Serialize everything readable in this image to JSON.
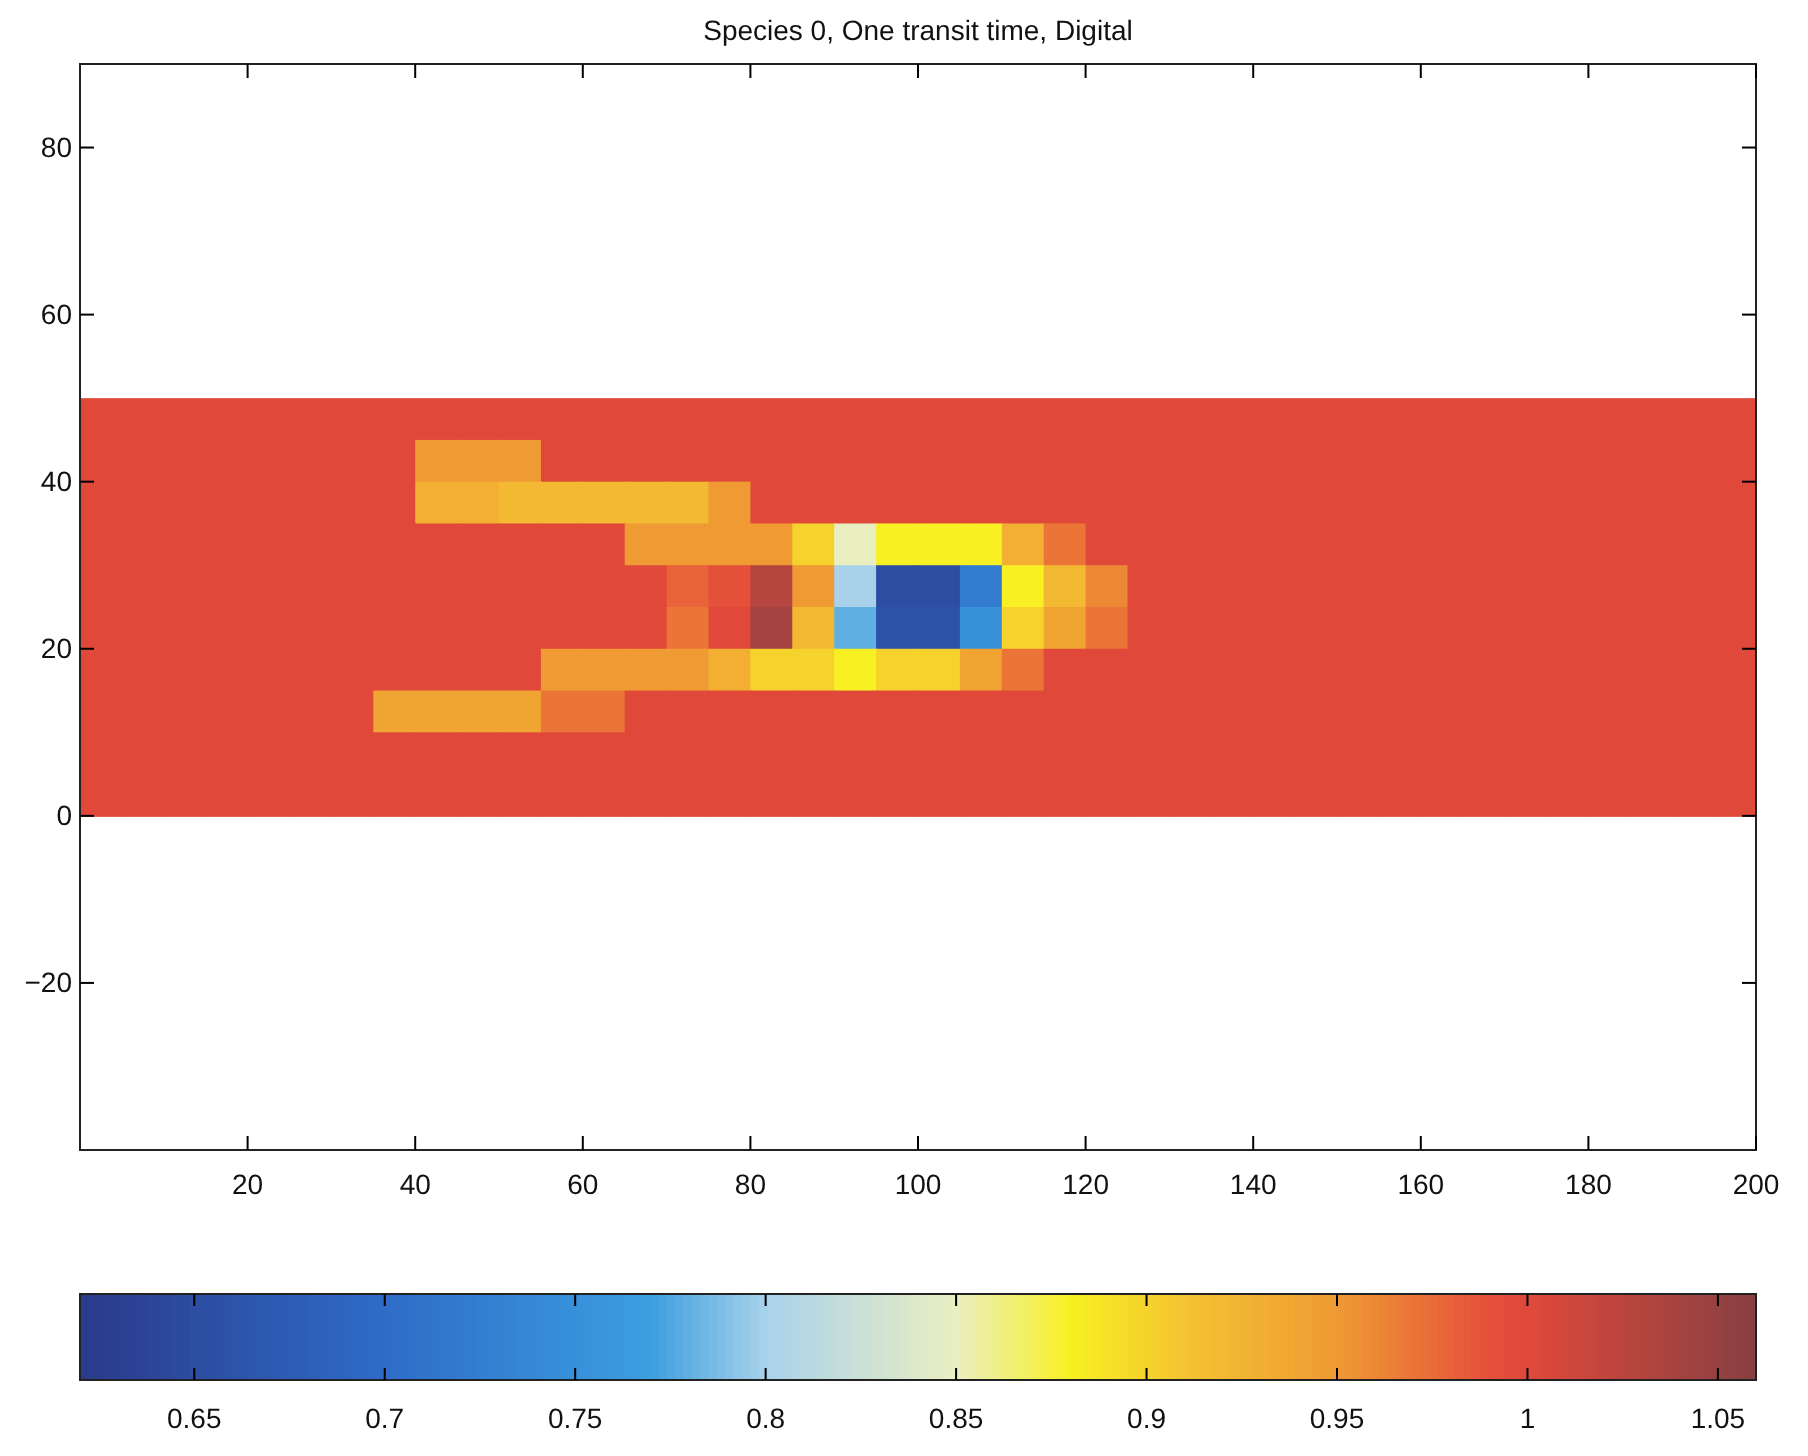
{
  "chart_data": {
    "type": "heatmap",
    "title": "Species 0, One transit time, Digital",
    "x": [
      2.5,
      7.5,
      12.5,
      17.5,
      22.5,
      27.5,
      32.5,
      37.5,
      42.5,
      47.5,
      52.5,
      57.5,
      62.5,
      67.5,
      72.5,
      77.5,
      82.5,
      87.5,
      92.5,
      97.5,
      102.5,
      107.5,
      112.5,
      117.5,
      122.5,
      127.5,
      132.5,
      137.5,
      142.5,
      147.5,
      152.5,
      157.5,
      162.5,
      167.5,
      172.5,
      177.5,
      182.5,
      187.5,
      192.5,
      197.5
    ],
    "y": [
      47.5,
      42.5,
      37.5,
      32.5,
      27.5,
      22.5,
      17.5,
      12.5,
      7.5,
      2.5
    ],
    "cells": [
      [
        1,
        1,
        1,
        1,
        1,
        1,
        1,
        1,
        1,
        1,
        1,
        1,
        1,
        1,
        1,
        1,
        1,
        1,
        1,
        1,
        1,
        1,
        1,
        1,
        1,
        1,
        1,
        1,
        1,
        1,
        1,
        1,
        1,
        1,
        1,
        1,
        1,
        1,
        1,
        1
      ],
      [
        1,
        1,
        1,
        1,
        1,
        1,
        1,
        1,
        0.95,
        0.95,
        0.95,
        1,
        1,
        1,
        1,
        1,
        1,
        1,
        1,
        1,
        1,
        1,
        1,
        1,
        1,
        1,
        1,
        1,
        1,
        1,
        1,
        1,
        1,
        1,
        1,
        1,
        1,
        1,
        1,
        1
      ],
      [
        1,
        1,
        1,
        1,
        1,
        1,
        1,
        1,
        0.93,
        0.93,
        0.92,
        0.92,
        0.92,
        0.92,
        0.92,
        0.95,
        1,
        1,
        1,
        1,
        1,
        1,
        1,
        1,
        1,
        1,
        1,
        1,
        1,
        1,
        1,
        1,
        1,
        1,
        1,
        1,
        1,
        1,
        1,
        1
      ],
      [
        1,
        1,
        1,
        1,
        1,
        1,
        1,
        1,
        1,
        1,
        1,
        1,
        1,
        0.95,
        0.95,
        0.95,
        0.95,
        0.9,
        0.85,
        0.88,
        0.88,
        0.88,
        0.93,
        0.97,
        1,
        1,
        1,
        1,
        1,
        1,
        1,
        1,
        1,
        1,
        1,
        1,
        1,
        1,
        1,
        1
      ],
      [
        1,
        1,
        1,
        1,
        1,
        1,
        1,
        1,
        1,
        1,
        1,
        1,
        1,
        1,
        0.98,
        0.99,
        1.03,
        0.95,
        0.8,
        0.65,
        0.65,
        0.72,
        0.88,
        0.92,
        0.96,
        1,
        1,
        1,
        1,
        1,
        1,
        1,
        1,
        1,
        1,
        1,
        1,
        1,
        1,
        1
      ],
      [
        1,
        1,
        1,
        1,
        1,
        1,
        1,
        1,
        1,
        1,
        1,
        1,
        1,
        1,
        0.97,
        1,
        1.04,
        0.92,
        0.78,
        0.66,
        0.66,
        0.75,
        0.9,
        0.94,
        0.97,
        1,
        1,
        1,
        1,
        1,
        1,
        1,
        1,
        1,
        1,
        1,
        1,
        1,
        1,
        1
      ],
      [
        1,
        1,
        1,
        1,
        1,
        1,
        1,
        1,
        1,
        1,
        1,
        0.95,
        0.95,
        0.95,
        0.95,
        0.93,
        0.9,
        0.9,
        0.88,
        0.9,
        0.9,
        0.94,
        0.97,
        1,
        1,
        1,
        1,
        1,
        1,
        1,
        1,
        1,
        1,
        1,
        1,
        1,
        1,
        1,
        1,
        1
      ],
      [
        1,
        1,
        1,
        1,
        1,
        1,
        1,
        0.94,
        0.94,
        0.94,
        0.94,
        0.97,
        0.97,
        1,
        1,
        1,
        1,
        1,
        1,
        1,
        1,
        1,
        1,
        1,
        1,
        1,
        1,
        1,
        1,
        1,
        1,
        1,
        1,
        1,
        1,
        1,
        1,
        1,
        1,
        1
      ],
      [
        1,
        1,
        1,
        1,
        1,
        1,
        1,
        1,
        1,
        1,
        1,
        1,
        1,
        1,
        1,
        1,
        1,
        1,
        1,
        1,
        1,
        1,
        1,
        1,
        1,
        1,
        1,
        1,
        1,
        1,
        1,
        1,
        1,
        1,
        1,
        1,
        1,
        1,
        1,
        1
      ],
      [
        1,
        1,
        1,
        1,
        1,
        1,
        1,
        1,
        1,
        1,
        1,
        1,
        1,
        1,
        1,
        1,
        1,
        1,
        1,
        1,
        1,
        1,
        1,
        1,
        1,
        1,
        1,
        1,
        1,
        1,
        1,
        1,
        1,
        1,
        1,
        1,
        1,
        1,
        1,
        1
      ]
    ],
    "xlim": [
      0,
      200
    ],
    "xticks": [
      20,
      40,
      60,
      80,
      100,
      120,
      140,
      160,
      180,
      200
    ],
    "ylim": [
      -40,
      90
    ],
    "yticks": [
      -20,
      0,
      20,
      40,
      60,
      80
    ],
    "clim": [
      0.62,
      1.06
    ],
    "cticks": [
      0.65,
      0.7,
      0.75,
      0.8,
      0.85,
      0.9,
      0.95,
      1,
      1.05
    ]
  }
}
